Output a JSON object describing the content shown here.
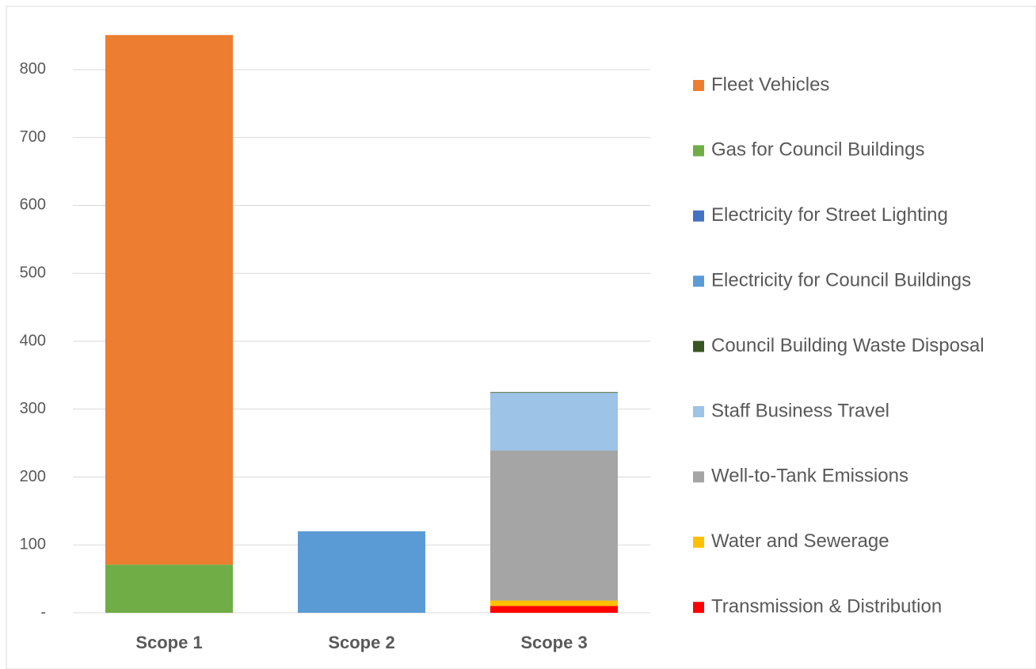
{
  "chart_data": {
    "type": "stacked_bar",
    "categories": [
      "Scope 1",
      "Scope 2",
      "Scope 3"
    ],
    "series": [
      {
        "name": "Transmission & Distribution",
        "color": "#ff0000",
        "values": [
          0,
          0,
          10
        ]
      },
      {
        "name": "Water and Sewerage",
        "color": "#ffc000",
        "values": [
          0,
          0,
          8
        ]
      },
      {
        "name": "Well-to-Tank Emissions",
        "color": "#a5a5a5",
        "values": [
          0,
          0,
          221
        ]
      },
      {
        "name": "Staff Business Travel",
        "color": "#9dc3e6",
        "values": [
          0,
          0,
          85
        ]
      },
      {
        "name": "Council Building Waste Disposal",
        "color": "#375623",
        "values": [
          0,
          0,
          1
        ]
      },
      {
        "name": "Electricity for Council Buildings",
        "color": "#5b9bd5",
        "values": [
          0,
          120,
          0
        ]
      },
      {
        "name": "Electricity for Street Lighting",
        "color": "#4472c4",
        "values": [
          0,
          0,
          0
        ]
      },
      {
        "name": "Gas for Council Buildings",
        "color": "#70ad47",
        "values": [
          71,
          0,
          0
        ]
      },
      {
        "name": "Fleet Vehicles",
        "color": "#ed7d31",
        "values": [
          780,
          0,
          0
        ]
      }
    ],
    "ylim": [
      0,
      860
    ],
    "yticks": [
      {
        "value": 0,
        "label": "-"
      },
      100,
      200,
      300,
      400,
      500,
      600,
      700,
      800
    ],
    "grid": true,
    "legend": "right"
  }
}
